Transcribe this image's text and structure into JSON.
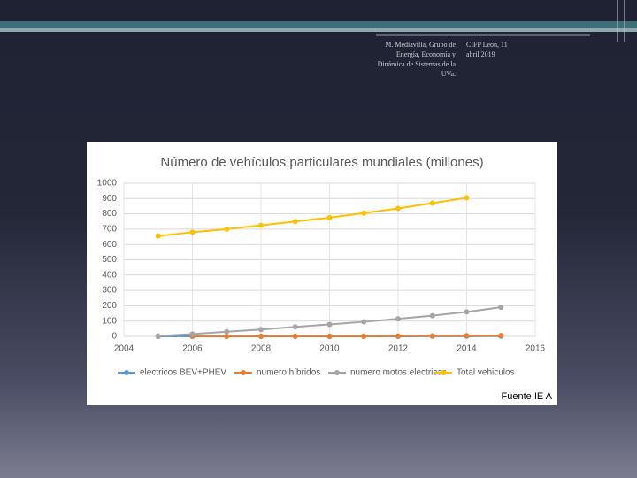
{
  "header": {
    "author": "M. Mediavilla, Grupo de Energía, Economía y Dinámica de Sistemas de la UVa.",
    "event": "CIFP León, 11 abril 2019"
  },
  "source": "Fuente IE A",
  "chart_data": {
    "type": "line",
    "title": "Número de vehículos particulares mundiales (millones)",
    "x": [
      2005,
      2006,
      2007,
      2008,
      2009,
      2010,
      2011,
      2012,
      2013,
      2014,
      2015
    ],
    "series": [
      {
        "name": "electricos BEV+PHEV",
        "color": "#5b9bd5",
        "values": [
          0,
          0,
          0,
          0,
          0,
          0.05,
          0.1,
          0.2,
          0.4,
          0.7,
          1.2
        ]
      },
      {
        "name": "numero híbridos",
        "color": "#ed7d31",
        "values": [
          null,
          1,
          1,
          1,
          1,
          1,
          1,
          2,
          3,
          4,
          5
        ]
      },
      {
        "name": "numero motos electricas",
        "color": "#a5a5a5",
        "values": [
          2,
          15,
          30,
          45,
          62,
          78,
          95,
          115,
          135,
          160,
          190
        ]
      },
      {
        "name": "Total vehiculos",
        "color": "#ffc000",
        "values": [
          655,
          680,
          700,
          725,
          750,
          775,
          805,
          835,
          870,
          905,
          null
        ]
      }
    ],
    "xlim": [
      2004,
      2016
    ],
    "xticks": [
      2004,
      2006,
      2008,
      2010,
      2012,
      2014,
      2016
    ],
    "ylim": [
      0,
      1000
    ],
    "yticks": [
      0,
      100,
      200,
      300,
      400,
      500,
      600,
      700,
      800,
      900,
      1000
    ],
    "grid": true
  }
}
